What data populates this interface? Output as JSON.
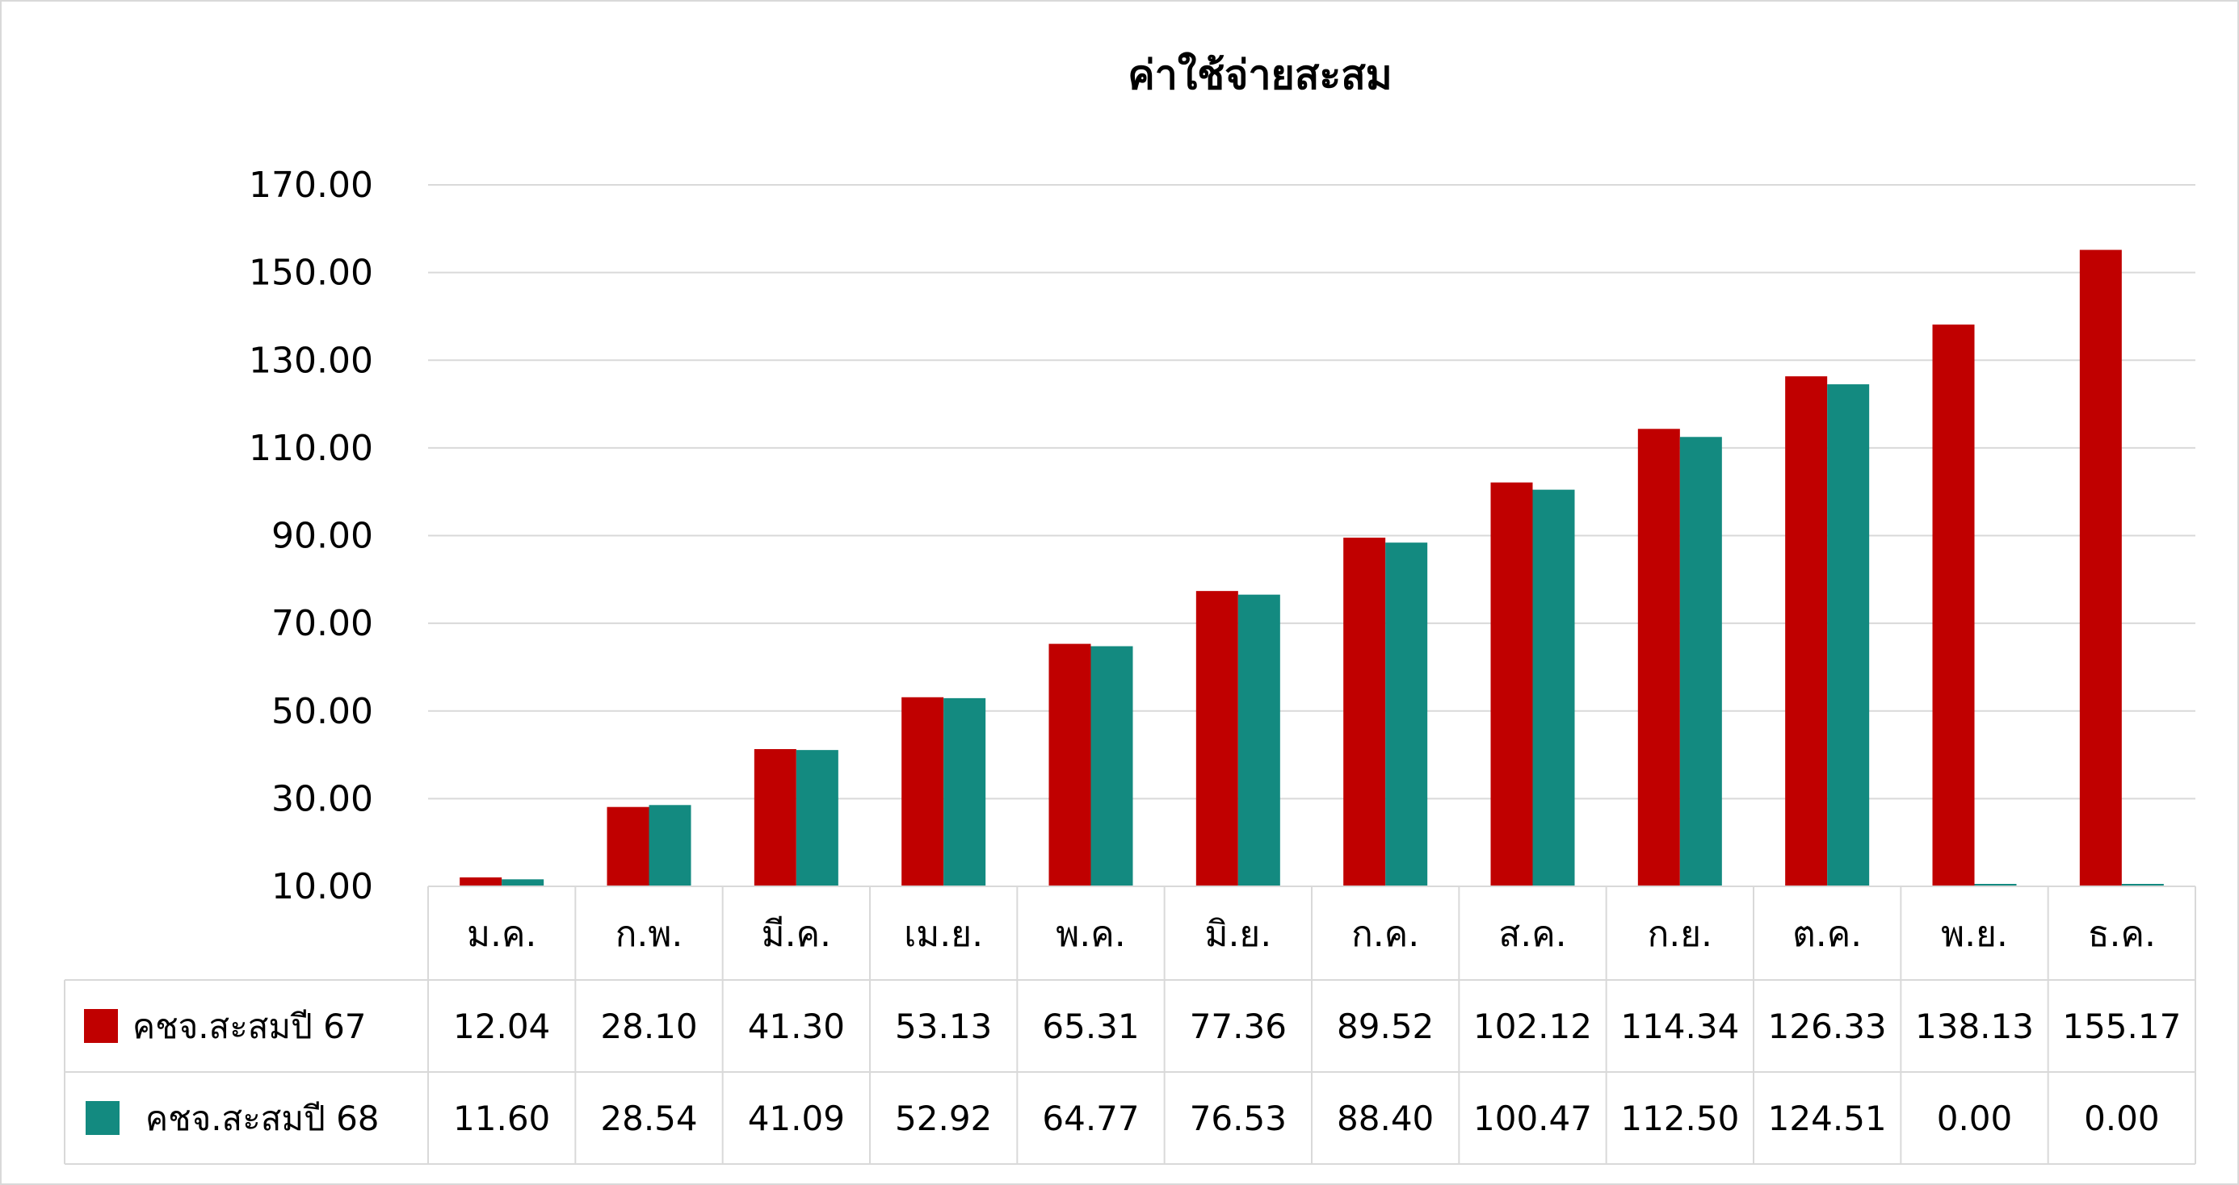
{
  "chart_data": {
    "type": "bar",
    "title": "ค่าใช้จ่ายสะสม",
    "categories": [
      "ม.ค.",
      "ก.พ.",
      "มี.ค.",
      "เม.ย.",
      "พ.ค.",
      "มิ.ย.",
      "ก.ค.",
      "ส.ค.",
      "ก.ย.",
      "ต.ค.",
      "พ.ย.",
      "ธ.ค."
    ],
    "series": [
      {
        "name": "คชจ.สะสมปี 67",
        "color": "#C00000",
        "values": [
          12.04,
          28.1,
          41.3,
          53.13,
          65.31,
          77.36,
          89.52,
          102.12,
          114.34,
          126.33,
          138.13,
          155.17
        ],
        "labels": [
          "12.04",
          "28.10",
          "41.30",
          "53.13",
          "65.31",
          "77.36",
          "89.52",
          "102.12",
          "114.34",
          "126.33",
          "138.13",
          "155.17"
        ]
      },
      {
        "name": "คชจ.สะสมปี 68",
        "color": "#138A80",
        "values": [
          11.6,
          28.54,
          41.09,
          52.92,
          64.77,
          76.53,
          88.4,
          100.47,
          112.5,
          124.51,
          0.0,
          0.0
        ],
        "labels": [
          "11.60",
          "28.54",
          "41.09",
          "52.92",
          "64.77",
          "76.53",
          "88.40",
          "100.47",
          "112.50",
          "124.51",
          "0.00",
          "0.00"
        ]
      }
    ],
    "ylim": [
      10,
      170
    ],
    "yticks": [
      "10.00",
      "30.00",
      "50.00",
      "70.00",
      "90.00",
      "110.00",
      "130.00",
      "150.00",
      "170.00"
    ],
    "ytick_values": [
      10,
      30,
      50,
      70,
      90,
      110,
      130,
      150,
      170
    ],
    "grid": true,
    "legend": "data-table",
    "gridline_color": "#D9D9D9",
    "table_border_color": "#D9D9D9"
  }
}
